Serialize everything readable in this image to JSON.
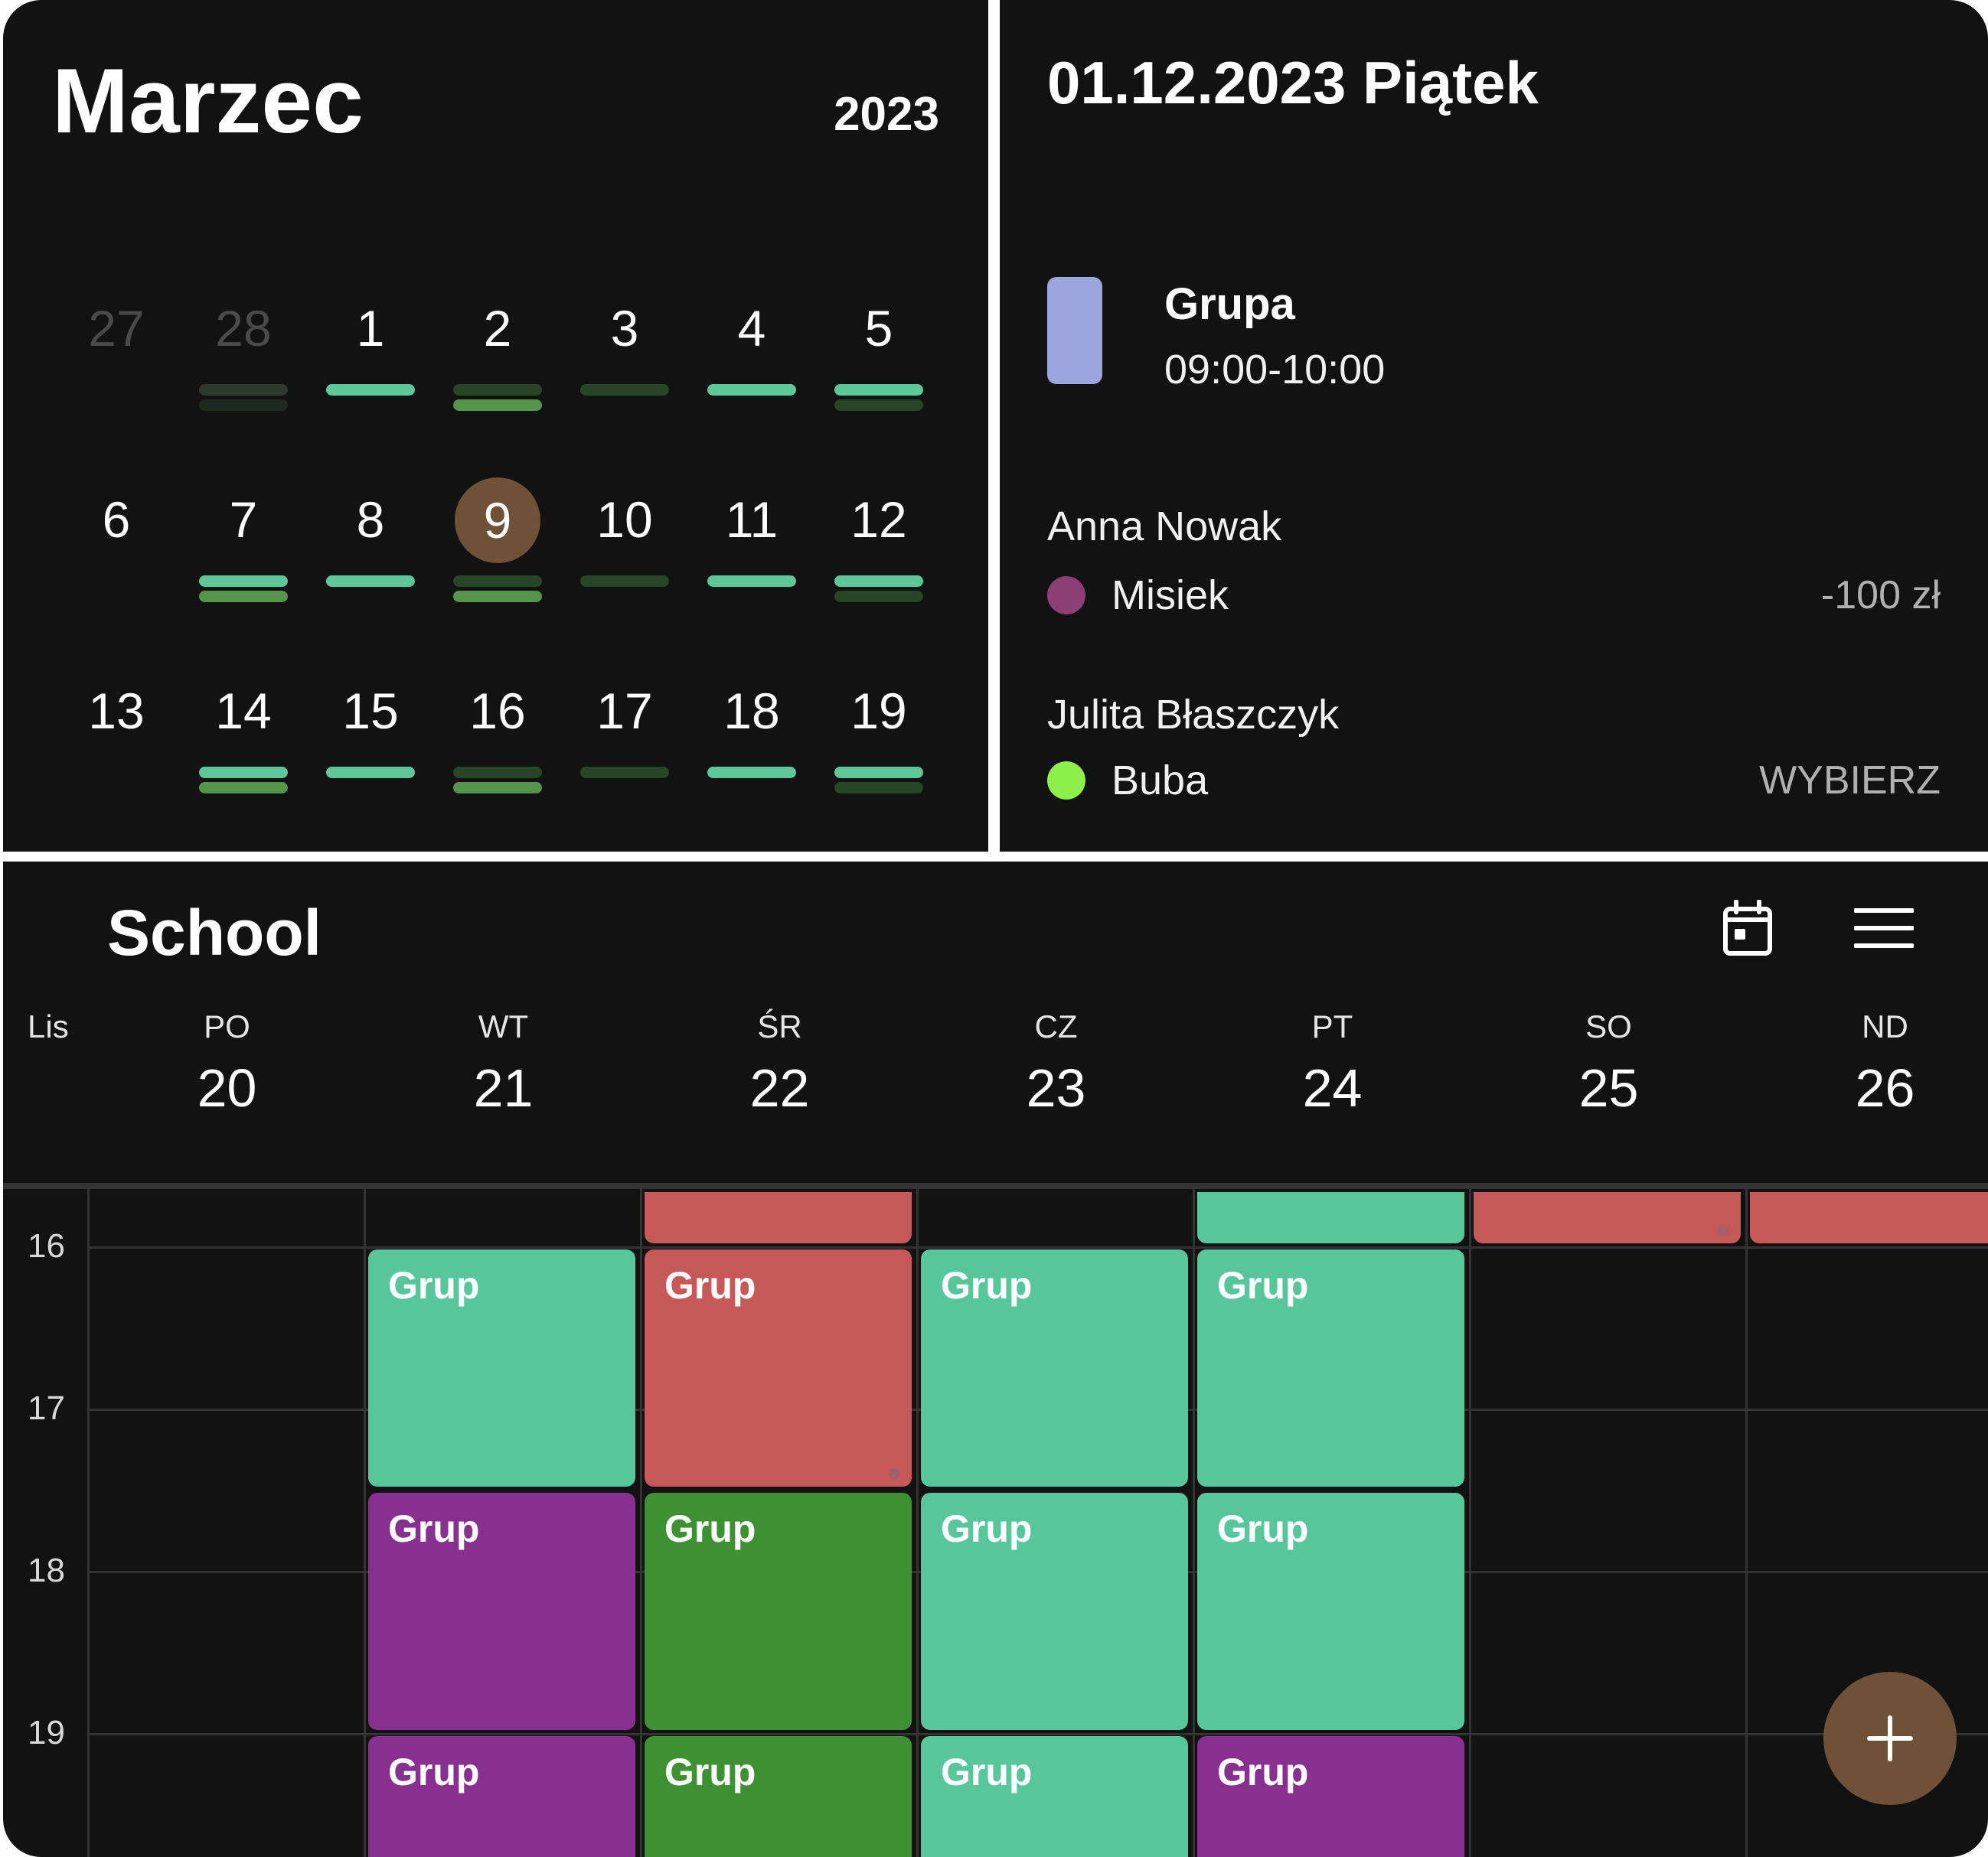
{
  "month_view": {
    "title": "Marzec",
    "year": "2023",
    "selected_day": "9",
    "selected_color": "#6f5137",
    "bar_colors": {
      "light": "#5ec79a",
      "medium": "#54954a",
      "dark": "#264626",
      "faded": "#2c3a2c",
      "faded_dark": "#1d2a1d"
    },
    "rows": [
      [
        {
          "day": "27",
          "muted": true,
          "bars": []
        },
        {
          "day": "28",
          "muted": true,
          "bars": [
            "faded",
            "faded_dark"
          ]
        },
        {
          "day": "1",
          "muted": false,
          "bars": [
            "light"
          ]
        },
        {
          "day": "2",
          "muted": false,
          "bars": [
            "dark",
            "medium"
          ]
        },
        {
          "day": "3",
          "muted": false,
          "bars": [
            "dark"
          ]
        },
        {
          "day": "4",
          "muted": false,
          "bars": [
            "light"
          ]
        },
        {
          "day": "5",
          "muted": false,
          "bars": [
            "light",
            "dark"
          ]
        }
      ],
      [
        {
          "day": "6",
          "muted": false,
          "bars": []
        },
        {
          "day": "7",
          "muted": false,
          "bars": [
            "light",
            "medium"
          ]
        },
        {
          "day": "8",
          "muted": false,
          "bars": [
            "light"
          ]
        },
        {
          "day": "9",
          "muted": false,
          "bars": [
            "dark",
            "medium"
          ],
          "selected": true
        },
        {
          "day": "10",
          "muted": false,
          "bars": [
            "dark"
          ]
        },
        {
          "day": "11",
          "muted": false,
          "bars": [
            "light"
          ]
        },
        {
          "day": "12",
          "muted": false,
          "bars": [
            "light",
            "dark"
          ]
        }
      ],
      [
        {
          "day": "13",
          "muted": false,
          "bars": []
        },
        {
          "day": "14",
          "muted": false,
          "bars": [
            "light",
            "medium"
          ]
        },
        {
          "day": "15",
          "muted": false,
          "bars": [
            "light"
          ]
        },
        {
          "day": "16",
          "muted": false,
          "bars": [
            "dark",
            "medium"
          ]
        },
        {
          "day": "17",
          "muted": false,
          "bars": [
            "dark"
          ]
        },
        {
          "day": "18",
          "muted": false,
          "bars": [
            "light"
          ]
        },
        {
          "day": "19",
          "muted": false,
          "bars": [
            "light",
            "dark"
          ]
        }
      ]
    ]
  },
  "detail": {
    "date_title": "01.12.2023 Piątek",
    "group": {
      "name": "Grupa",
      "time": "09:00-10:00",
      "color": "#9da6dc"
    },
    "people": [
      {
        "name": "Anna Nowak",
        "pet": "Misiek",
        "pet_color": "#8b3f74",
        "value": "-100 zł"
      },
      {
        "name": "Julita Błaszczyk",
        "pet": "Buba",
        "pet_color": "#8df04a",
        "value": "WYBIERZ"
      }
    ]
  },
  "week_view": {
    "title": "School",
    "calendar_icon": "calendar-icon",
    "menu_icon": "menu-icon",
    "month_label": "Lis",
    "days": [
      {
        "name": "PO",
        "date": "20"
      },
      {
        "name": "WT",
        "date": "21"
      },
      {
        "name": "ŚR",
        "date": "22"
      },
      {
        "name": "CZ",
        "date": "23"
      },
      {
        "name": "PT",
        "date": "24"
      },
      {
        "name": "SO",
        "date": "25"
      },
      {
        "name": "ND",
        "date": "26"
      }
    ],
    "hours": [
      "16",
      "17",
      "18",
      "19"
    ],
    "event_label": "Grup",
    "colors": {
      "teal": "#57c79b",
      "red": "#c75858",
      "purple": "#87308f",
      "green": "#3d9133"
    },
    "events": [
      {
        "day": 2,
        "start": 15.65,
        "end": 16.0,
        "color": "red",
        "label": ""
      },
      {
        "day": 4,
        "start": 15.65,
        "end": 16.0,
        "color": "teal",
        "label": ""
      },
      {
        "day": 5,
        "start": 15.65,
        "end": 16.0,
        "color": "red",
        "label": "",
        "dot": true
      },
      {
        "day": 6,
        "start": 15.65,
        "end": 16.0,
        "color": "red",
        "label": ""
      },
      {
        "day": 1,
        "start": 16.0,
        "end": 17.5,
        "color": "teal",
        "label": "Grup"
      },
      {
        "day": 2,
        "start": 16.0,
        "end": 17.5,
        "color": "red",
        "label": "Grup",
        "dot": true
      },
      {
        "day": 3,
        "start": 16.0,
        "end": 17.5,
        "color": "teal",
        "label": "Grup"
      },
      {
        "day": 4,
        "start": 16.0,
        "end": 17.5,
        "color": "teal",
        "label": "Grup"
      },
      {
        "day": 1,
        "start": 17.5,
        "end": 19.0,
        "color": "purple",
        "label": "Grup"
      },
      {
        "day": 2,
        "start": 17.5,
        "end": 19.0,
        "color": "green",
        "label": "Grup"
      },
      {
        "day": 3,
        "start": 17.5,
        "end": 19.0,
        "color": "teal",
        "label": "Grup"
      },
      {
        "day": 4,
        "start": 17.5,
        "end": 19.0,
        "color": "teal",
        "label": "Grup"
      },
      {
        "day": 1,
        "start": 19.0,
        "end": 20.5,
        "color": "purple",
        "label": "Grup"
      },
      {
        "day": 2,
        "start": 19.0,
        "end": 20.5,
        "color": "green",
        "label": "Grup"
      },
      {
        "day": 3,
        "start": 19.0,
        "end": 20.5,
        "color": "teal",
        "label": "Grup"
      },
      {
        "day": 4,
        "start": 19.0,
        "end": 20.5,
        "color": "purple",
        "label": "Grup"
      }
    ],
    "add_button_icon": "plus-icon",
    "add_button_color": "#6f5137"
  }
}
